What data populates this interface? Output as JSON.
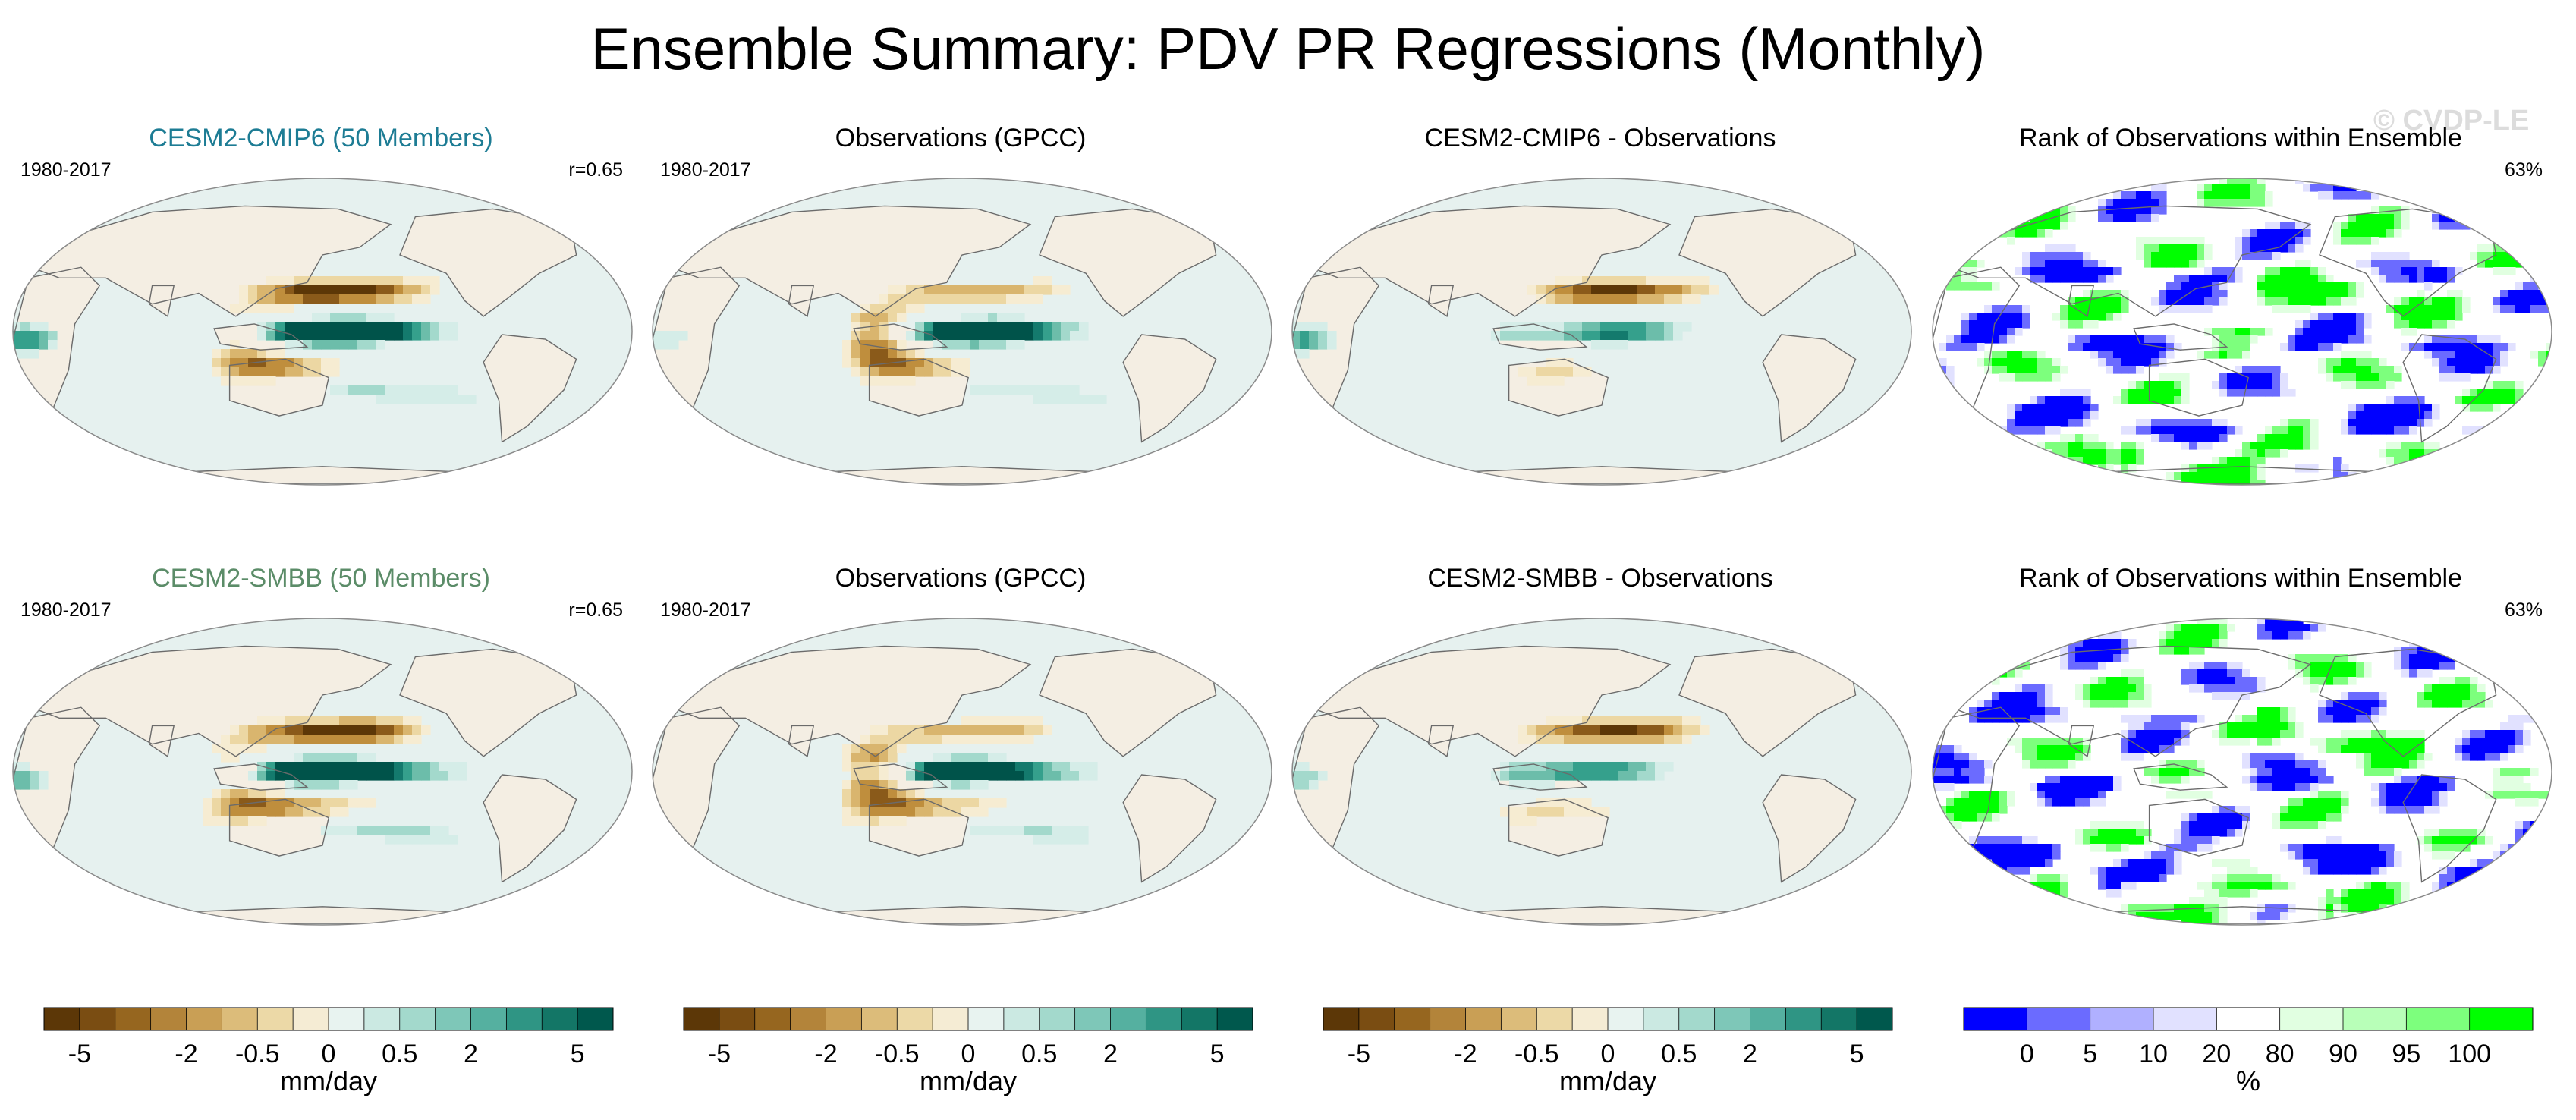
{
  "title": "Ensemble Summary: PDV PR Regressions (Monthly)",
  "watermark": "© CVDP-LE",
  "colors": {
    "ocean": "#e6f1ef",
    "land": "#f4eee3",
    "coast": "#6b6b6b",
    "brown": [
      "#5c3707",
      "#8a5a1a",
      "#bf8e3d",
      "#d9b56e",
      "#ecd7a3",
      "#f6ecd2"
    ],
    "teal": [
      "#d5ede8",
      "#a3d9cc",
      "#6cbdaa",
      "#35a08c",
      "#147a6d",
      "#00534a"
    ],
    "rank_blue": [
      "#0000ff",
      "#6b6bff",
      "#b0b0ff",
      "#e1e1ff"
    ],
    "rank_green": [
      "#e1ffe1",
      "#b8ffb8",
      "#7dff7d",
      "#00ff00"
    ]
  },
  "panels": [
    {
      "row": 1,
      "col": 1,
      "title": "CESM2-CMIP6 (50 Members)",
      "title_color": "#1d7c94",
      "left": "1980-2017",
      "right": "r=0.65",
      "kind": "model"
    },
    {
      "row": 1,
      "col": 2,
      "title": "Observations (GPCC)",
      "title_color": "#000000",
      "left": "1980-2017",
      "right": "",
      "kind": "obs"
    },
    {
      "row": 1,
      "col": 3,
      "title": "CESM2-CMIP6 - Observations",
      "title_color": "#000000",
      "left": "",
      "right": "",
      "kind": "diff"
    },
    {
      "row": 1,
      "col": 4,
      "title": "Rank of Observations within Ensemble",
      "title_color": "#000000",
      "left": "",
      "right": "63%",
      "kind": "rank"
    },
    {
      "row": 2,
      "col": 1,
      "title": "CESM2-SMBB (50 Members)",
      "title_color": "#5b8c68",
      "left": "1980-2017",
      "right": "r=0.65",
      "kind": "model"
    },
    {
      "row": 2,
      "col": 2,
      "title": "Observations (GPCC)",
      "title_color": "#000000",
      "left": "1980-2017",
      "right": "",
      "kind": "obs"
    },
    {
      "row": 2,
      "col": 3,
      "title": "CESM2-SMBB - Observations",
      "title_color": "#000000",
      "left": "",
      "right": "",
      "kind": "diff"
    },
    {
      "row": 2,
      "col": 4,
      "title": "Rank of Observations within Ensemble",
      "title_color": "#000000",
      "left": "",
      "right": "63%",
      "kind": "rank"
    }
  ],
  "colorbars": [
    {
      "labels": [
        "-5",
        "-2",
        "-0.5",
        "0",
        "0.5",
        "2",
        "5"
      ],
      "title": "mm/day"
    },
    {
      "labels": [
        "-5",
        "-2",
        "-0.5",
        "0",
        "0.5",
        "2",
        "5"
      ],
      "title": "mm/day"
    },
    {
      "labels": [
        "-5",
        "-2",
        "-0.5",
        "0",
        "0.5",
        "2",
        "5"
      ],
      "title": "mm/day"
    },
    {
      "labels": [
        "0",
        "5",
        "10",
        "20",
        "80",
        "90",
        "95",
        "100"
      ],
      "title": "%"
    }
  ],
  "chart_data": {
    "type": "heatmap",
    "title": "Ensemble Summary: PDV PR Regressions (Monthly)",
    "projection": "robinson",
    "period": "1980-2017",
    "variable": "PR regression onto PDV",
    "units": "mm/day",
    "levels": [
      -5,
      -4,
      -3,
      -2,
      -1,
      -0.5,
      -0.2,
      0,
      0.2,
      0.5,
      1,
      2,
      3,
      4,
      5
    ],
    "rank_levels": [
      0,
      5,
      10,
      20,
      80,
      90,
      95,
      100
    ],
    "pattern_correlation": {
      "CESM2-CMIP6": 0.65,
      "CESM2-SMBB": 0.65
    },
    "rank_percent_within_10_90": {
      "CESM2-CMIP6": 63,
      "CESM2-SMBB": 63
    }
  }
}
